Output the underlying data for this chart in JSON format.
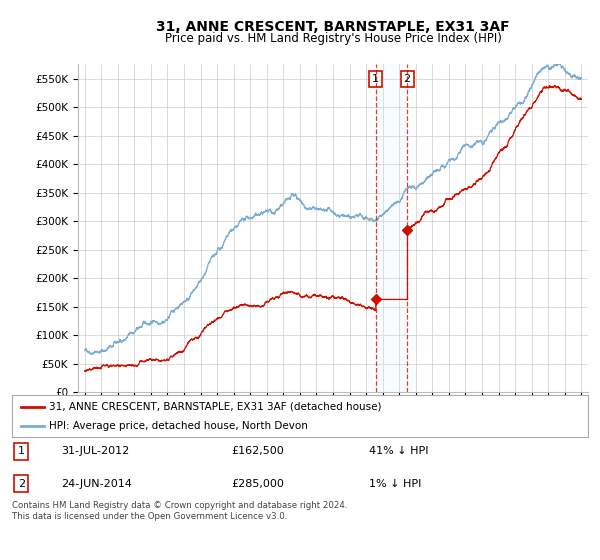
{
  "title": "31, ANNE CRESCENT, BARNSTAPLE, EX31 3AF",
  "subtitle": "Price paid vs. HM Land Registry's House Price Index (HPI)",
  "ylim": [
    0,
    575000
  ],
  "yticks": [
    0,
    50000,
    100000,
    150000,
    200000,
    250000,
    300000,
    350000,
    400000,
    450000,
    500000,
    550000
  ],
  "ytick_labels": [
    "£0",
    "£50K",
    "£100K",
    "£150K",
    "£200K",
    "£250K",
    "£300K",
    "£350K",
    "£400K",
    "£450K",
    "£500K",
    "£550K"
  ],
  "hpi_color": "#7aadd4",
  "price_color": "#cc1100",
  "sale1_date": 2012.58,
  "sale1_price": 162500,
  "sale2_date": 2014.48,
  "sale2_price": 285000,
  "legend_price_label": "31, ANNE CRESCENT, BARNSTAPLE, EX31 3AF (detached house)",
  "legend_hpi_label": "HPI: Average price, detached house, North Devon",
  "background_color": "#ffffff",
  "plot_background": "#ffffff",
  "grid_color": "#cccccc",
  "span_color": "#ddeeff",
  "xlim_left": 1994.6,
  "xlim_right": 2025.4
}
